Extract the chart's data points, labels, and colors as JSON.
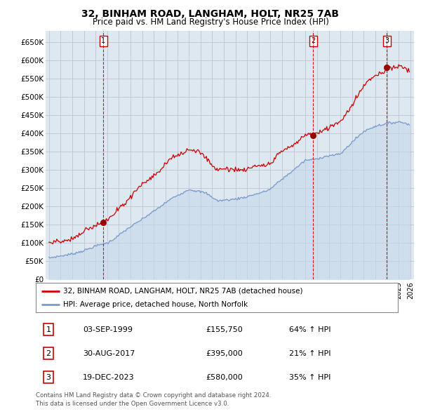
{
  "title": "32, BINHAM ROAD, LANGHAM, HOLT, NR25 7AB",
  "subtitle": "Price paid vs. HM Land Registry's House Price Index (HPI)",
  "ylim": [
    0,
    680000
  ],
  "yticks": [
    0,
    50000,
    100000,
    150000,
    200000,
    250000,
    300000,
    350000,
    400000,
    450000,
    500000,
    550000,
    600000,
    650000
  ],
  "ytick_labels": [
    "£0",
    "£50K",
    "£100K",
    "£150K",
    "£200K",
    "£250K",
    "£300K",
    "£350K",
    "£400K",
    "£450K",
    "£500K",
    "£550K",
    "£600K",
    "£650K"
  ],
  "xlim_start": 1994.7,
  "xlim_end": 2026.3,
  "grid_color": "#bbbbcc",
  "background_color": "#ffffff",
  "plot_bg_color": "#dde8f0",
  "red_line_color": "#cc0000",
  "blue_line_color": "#7799cc",
  "sale_marker_color": "#990000",
  "sale_marker_size": 6,
  "transactions": [
    {
      "label": "1",
      "date_x": 1999.67,
      "price": 155750,
      "pct": "64%",
      "date_str": "03-SEP-1999",
      "price_str": "£155,750"
    },
    {
      "label": "2",
      "date_x": 2017.66,
      "price": 395000,
      "pct": "21%",
      "date_str": "30-AUG-2017",
      "price_str": "£395,000"
    },
    {
      "label": "3",
      "date_x": 2023.97,
      "price": 580000,
      "pct": "35%",
      "date_str": "19-DEC-2023",
      "price_str": "£580,000"
    }
  ],
  "legend_property_label": "32, BINHAM ROAD, LANGHAM, HOLT, NR25 7AB (detached house)",
  "legend_hpi_label": "HPI: Average price, detached house, North Norfolk",
  "footer_line1": "Contains HM Land Registry data © Crown copyright and database right 2024.",
  "footer_line2": "This data is licensed under the Open Government Licence v3.0."
}
